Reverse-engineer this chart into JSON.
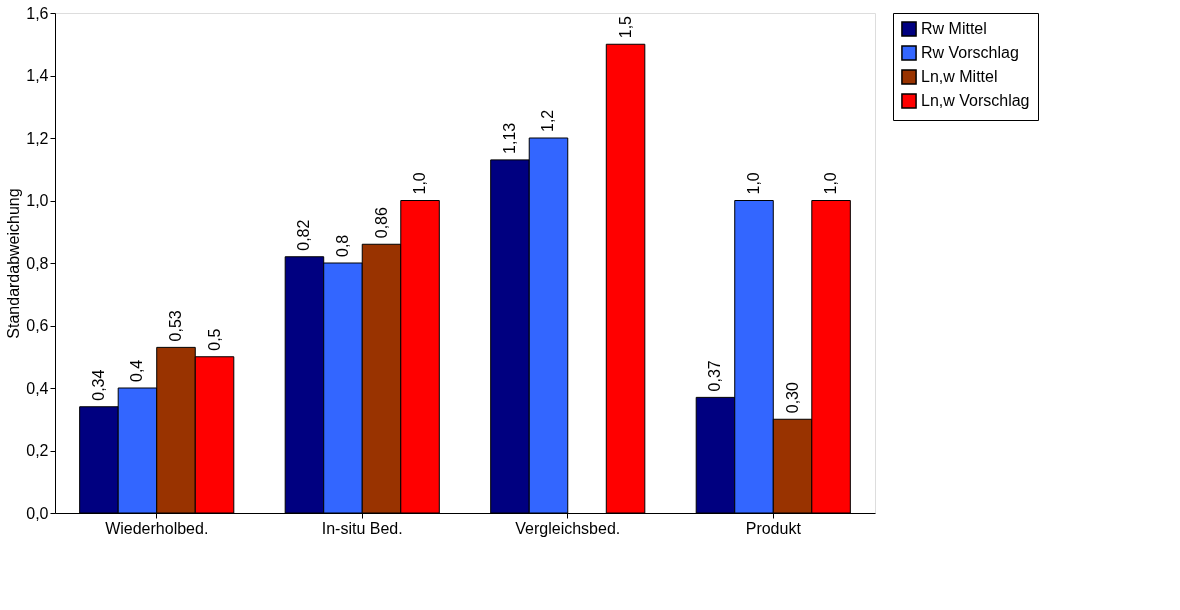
{
  "chart_data": {
    "type": "bar",
    "ylabel": "Standardabweichung",
    "categories": [
      "Wiederholbed.",
      "In-situ Bed.",
      "Vergleichsbed.",
      "Produkt"
    ],
    "series": [
      {
        "name": "Rw Mittel",
        "color": "#000080",
        "values": [
          0.34,
          0.82,
          1.13,
          0.37
        ],
        "value_labels": [
          "0,34",
          "0,82",
          "1,13",
          "0,37"
        ]
      },
      {
        "name": "Rw Vorschlag",
        "color": "#3366ff",
        "values": [
          0.4,
          0.8,
          1.2,
          1.0
        ],
        "value_labels": [
          "0,4",
          "0,8",
          "1,2",
          "1,0"
        ]
      },
      {
        "name": "Ln,w Mittel",
        "color": "#993300",
        "values": [
          0.53,
          0.86,
          null,
          0.3
        ],
        "value_labels": [
          "0,53",
          "0,86",
          null,
          "0,30"
        ]
      },
      {
        "name": "Ln,w Vorschlag",
        "color": "#ff0000",
        "values": [
          0.5,
          1.0,
          1.5,
          1.0
        ],
        "value_labels": [
          "0,5",
          "1,0",
          "1,5",
          "1,0"
        ]
      }
    ],
    "ylim": [
      0,
      1.6
    ],
    "yticks": [
      {
        "value": 0,
        "label": "0,0"
      },
      {
        "value": 0.2,
        "label": "0,2"
      },
      {
        "value": 0.4,
        "label": "0,4"
      },
      {
        "value": 0.6,
        "label": "0,6"
      },
      {
        "value": 0.8,
        "label": "0,8"
      },
      {
        "value": 1.0,
        "label": "1,0"
      },
      {
        "value": 1.2,
        "label": "1,2"
      },
      {
        "value": 1.4,
        "label": "1,4"
      },
      {
        "value": 1.6,
        "label": "1,6"
      }
    ],
    "grid": false,
    "legend": "right"
  }
}
